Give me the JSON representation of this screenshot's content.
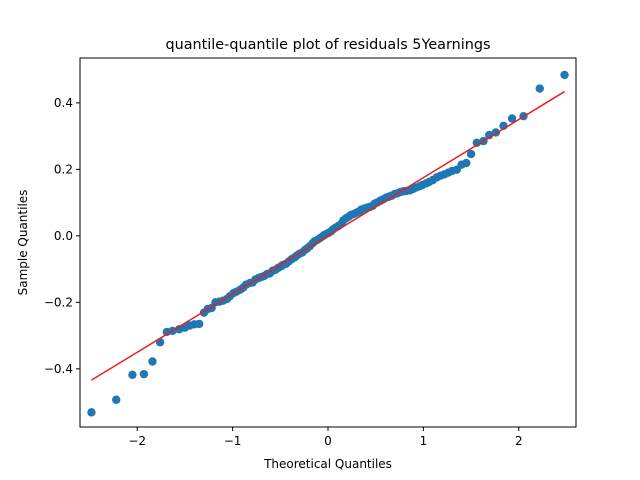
{
  "chart_data": {
    "type": "scatter",
    "title": "quantile-quantile plot of residuals 5Yearnings",
    "xlabel": "Theoretical Quantiles",
    "ylabel": "Sample Quantiles",
    "xlim": [
      -2.6,
      2.6
    ],
    "ylim": [
      -0.575,
      0.535
    ],
    "xticks": [
      -2,
      -1,
      0,
      1,
      2
    ],
    "xtick_labels": [
      "−2",
      "−1",
      "0",
      "1",
      "2"
    ],
    "yticks": [
      -0.4,
      -0.2,
      0.0,
      0.2,
      0.4
    ],
    "ytick_labels": [
      "−0.4",
      "−0.2",
      "0.0",
      "0.2",
      "0.4"
    ],
    "grid": false,
    "legend": "none",
    "colors": {
      "points": "#1f77b4",
      "fit_line": "#e8201c"
    },
    "points": [
      [
        -2.48,
        -0.531
      ],
      [
        -2.22,
        -0.493
      ],
      [
        -2.05,
        -0.418
      ],
      [
        -1.93,
        -0.416
      ],
      [
        -1.84,
        -0.378
      ],
      [
        -1.76,
        -0.32
      ],
      [
        -1.69,
        -0.289
      ],
      [
        -1.63,
        -0.286
      ],
      [
        -1.56,
        -0.281
      ],
      [
        -1.5,
        -0.276
      ],
      [
        -1.45,
        -0.27
      ],
      [
        -1.4,
        -0.266
      ],
      [
        -1.35,
        -0.265
      ],
      [
        -1.3,
        -0.231
      ],
      [
        -1.26,
        -0.22
      ],
      [
        -1.22,
        -0.217
      ],
      [
        -1.18,
        -0.2
      ],
      [
        -1.14,
        -0.198
      ],
      [
        -1.1,
        -0.195
      ],
      [
        -1.06,
        -0.19
      ],
      [
        -1.03,
        -0.182
      ],
      [
        -0.99,
        -0.172
      ],
      [
        -0.96,
        -0.168
      ],
      [
        -0.92,
        -0.162
      ],
      [
        -0.89,
        -0.156
      ],
      [
        -0.86,
        -0.147
      ],
      [
        -0.82,
        -0.142
      ],
      [
        -0.79,
        -0.14
      ],
      [
        -0.76,
        -0.131
      ],
      [
        -0.73,
        -0.127
      ],
      [
        -0.7,
        -0.124
      ],
      [
        -0.67,
        -0.121
      ],
      [
        -0.64,
        -0.115
      ],
      [
        -0.61,
        -0.113
      ],
      [
        -0.58,
        -0.105
      ],
      [
        -0.55,
        -0.102
      ],
      [
        -0.52,
        -0.096
      ],
      [
        -0.49,
        -0.091
      ],
      [
        -0.47,
        -0.087
      ],
      [
        -0.44,
        -0.084
      ],
      [
        -0.41,
        -0.077
      ],
      [
        -0.38,
        -0.07
      ],
      [
        -0.35,
        -0.065
      ],
      [
        -0.33,
        -0.06
      ],
      [
        -0.3,
        -0.054
      ],
      [
        -0.27,
        -0.05
      ],
      [
        -0.24,
        -0.042
      ],
      [
        -0.22,
        -0.038
      ],
      [
        -0.19,
        -0.031
      ],
      [
        -0.16,
        -0.022
      ],
      [
        -0.14,
        -0.016
      ],
      [
        -0.11,
        -0.012
      ],
      [
        -0.08,
        -0.006
      ],
      [
        -0.05,
        0.0
      ],
      [
        -0.03,
        0.004
      ],
      [
        0.0,
        0.008
      ],
      [
        0.03,
        0.013
      ],
      [
        0.05,
        0.019
      ],
      [
        0.08,
        0.025
      ],
      [
        0.11,
        0.03
      ],
      [
        0.14,
        0.036
      ],
      [
        0.16,
        0.046
      ],
      [
        0.19,
        0.053
      ],
      [
        0.22,
        0.058
      ],
      [
        0.24,
        0.063
      ],
      [
        0.27,
        0.066
      ],
      [
        0.3,
        0.07
      ],
      [
        0.33,
        0.074
      ],
      [
        0.35,
        0.079
      ],
      [
        0.38,
        0.082
      ],
      [
        0.41,
        0.085
      ],
      [
        0.44,
        0.087
      ],
      [
        0.47,
        0.091
      ],
      [
        0.49,
        0.097
      ],
      [
        0.52,
        0.101
      ],
      [
        0.55,
        0.106
      ],
      [
        0.58,
        0.11
      ],
      [
        0.61,
        0.115
      ],
      [
        0.64,
        0.118
      ],
      [
        0.67,
        0.121
      ],
      [
        0.7,
        0.126
      ],
      [
        0.73,
        0.128
      ],
      [
        0.76,
        0.132
      ],
      [
        0.79,
        0.134
      ],
      [
        0.82,
        0.135
      ],
      [
        0.86,
        0.137
      ],
      [
        0.89,
        0.141
      ],
      [
        0.92,
        0.145
      ],
      [
        0.96,
        0.149
      ],
      [
        0.99,
        0.153
      ],
      [
        1.03,
        0.158
      ],
      [
        1.06,
        0.162
      ],
      [
        1.1,
        0.168
      ],
      [
        1.14,
        0.176
      ],
      [
        1.18,
        0.181
      ],
      [
        1.22,
        0.185
      ],
      [
        1.26,
        0.19
      ],
      [
        1.3,
        0.195
      ],
      [
        1.35,
        0.199
      ],
      [
        1.4,
        0.214
      ],
      [
        1.45,
        0.219
      ],
      [
        1.5,
        0.246
      ],
      [
        1.56,
        0.28
      ],
      [
        1.63,
        0.285
      ],
      [
        1.69,
        0.303
      ],
      [
        1.76,
        0.311
      ],
      [
        1.84,
        0.331
      ],
      [
        1.93,
        0.353
      ],
      [
        2.05,
        0.36
      ],
      [
        2.22,
        0.443
      ],
      [
        2.48,
        0.484
      ]
    ],
    "fit_line": {
      "x": [
        -2.48,
        2.48
      ],
      "y": [
        -0.434,
        0.434
      ]
    }
  }
}
